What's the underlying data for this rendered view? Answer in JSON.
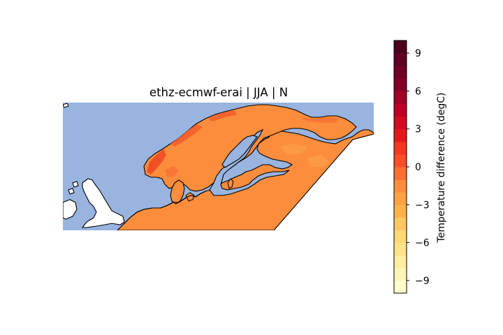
{
  "map": {
    "title": "ethz-ecmwf-erai | JJA | N",
    "ocean_color": "#98b4df",
    "land_outside_color": "#ffffff",
    "coastline_color": "#000000",
    "base_field_color": "#fb8d3d"
  },
  "colorbar": {
    "label": "Temperature difference (degC)",
    "min": -10,
    "max": 10,
    "levels": 20,
    "cmap": "YlOrRd",
    "ticks": [
      {
        "value": 9,
        "label": "9"
      },
      {
        "value": 6,
        "label": "6"
      },
      {
        "value": 3,
        "label": "3"
      },
      {
        "value": 0,
        "label": "0"
      },
      {
        "value": -3,
        "label": "−3"
      },
      {
        "value": -6,
        "label": "−6"
      },
      {
        "value": -9,
        "label": "−9"
      }
    ],
    "colors": [
      "#ffffcc",
      "#fff5b6",
      "#ffeda0",
      "#fee38b",
      "#fed976",
      "#fec762",
      "#feb24c",
      "#fea245",
      "#fd8d3c",
      "#fd6f33",
      "#fc4e2a",
      "#f23723",
      "#e31a1c",
      "#d00d21",
      "#bd0026",
      "#a00026",
      "#800026",
      "#700024",
      "#600022",
      "#4d001e"
    ]
  }
}
